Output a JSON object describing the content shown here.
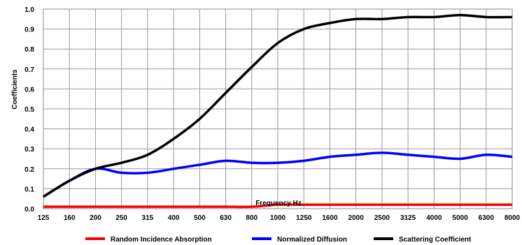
{
  "chart_data": {
    "type": "line",
    "title": "",
    "xlabel": "Frequency Hz",
    "ylabel": "Coefficients",
    "categories": [
      "125",
      "160",
      "200",
      "250",
      "315",
      "400",
      "500",
      "630",
      "800",
      "1000",
      "1250",
      "1600",
      "2000",
      "2500",
      "3125",
      "4000",
      "5000",
      "6300",
      "8000"
    ],
    "yticks": [
      "0.0",
      "0.1",
      "0.2",
      "0.3",
      "0.4",
      "0.5",
      "0.6",
      "0.7",
      "0.8",
      "0.9",
      "1.0"
    ],
    "ylim": [
      0,
      1
    ],
    "grid": true,
    "legend_position": "bottom",
    "series": [
      {
        "name": "Random Incidence Absorption",
        "color": "#ff0000",
        "values": [
          0.01,
          0.01,
          0.01,
          0.01,
          0.01,
          0.01,
          0.01,
          0.01,
          0.01,
          0.02,
          0.02,
          0.02,
          0.02,
          0.02,
          0.02,
          0.02,
          0.02,
          0.02,
          0.02
        ]
      },
      {
        "name": "Normalized Diffusion",
        "color": "#0000ff",
        "values": [
          0.06,
          0.14,
          0.2,
          0.18,
          0.18,
          0.2,
          0.22,
          0.24,
          0.23,
          0.23,
          0.24,
          0.26,
          0.27,
          0.28,
          0.27,
          0.26,
          0.25,
          0.27,
          0.26
        ]
      },
      {
        "name": "Scattering Coefficient",
        "color": "#000000",
        "values": [
          0.06,
          0.14,
          0.2,
          0.23,
          0.27,
          0.35,
          0.45,
          0.58,
          0.71,
          0.83,
          0.9,
          0.93,
          0.95,
          0.95,
          0.96,
          0.96,
          0.97,
          0.96,
          0.96
        ]
      }
    ]
  }
}
